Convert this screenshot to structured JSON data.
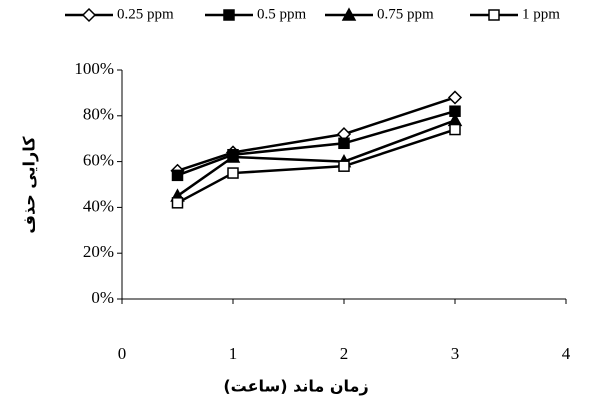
{
  "chart_data": {
    "type": "line",
    "x_label": "زمان ماند (ساعت)",
    "y_label": "کارایی حذف",
    "xlim": [
      0,
      4
    ],
    "xticks": [
      0,
      1,
      2,
      3,
      4
    ],
    "ylim": [
      0,
      100
    ],
    "yticks": [
      {
        "value": 0,
        "label": "0%"
      },
      {
        "value": 20,
        "label": "20%"
      },
      {
        "value": 40,
        "label": "40%"
      },
      {
        "value": 60,
        "label": "60%"
      },
      {
        "value": 80,
        "label": "80%"
      },
      {
        "value": 100,
        "label": "100%"
      }
    ],
    "grid": false,
    "legend": "top",
    "series": [
      {
        "name": "0.25 ppm",
        "color": "#000000",
        "marker": "diamond",
        "filled": false,
        "x": [
          0.5,
          1,
          2,
          3
        ],
        "values": [
          56,
          64,
          72,
          88
        ]
      },
      {
        "name": "0.5 ppm",
        "color": "#000000",
        "marker": "square",
        "filled": true,
        "x": [
          0.5,
          1,
          2,
          3
        ],
        "values": [
          54,
          63,
          68,
          82
        ]
      },
      {
        "name": "0.75 ppm",
        "color": "#000000",
        "marker": "triangle",
        "filled": true,
        "x": [
          0.5,
          1,
          2,
          3
        ],
        "values": [
          45,
          62,
          60,
          78
        ]
      },
      {
        "name": "1 ppm",
        "color": "#000000",
        "marker": "square",
        "filled": false,
        "x": [
          0.5,
          1,
          2,
          3
        ],
        "values": [
          42,
          55,
          58,
          74
        ]
      }
    ]
  }
}
